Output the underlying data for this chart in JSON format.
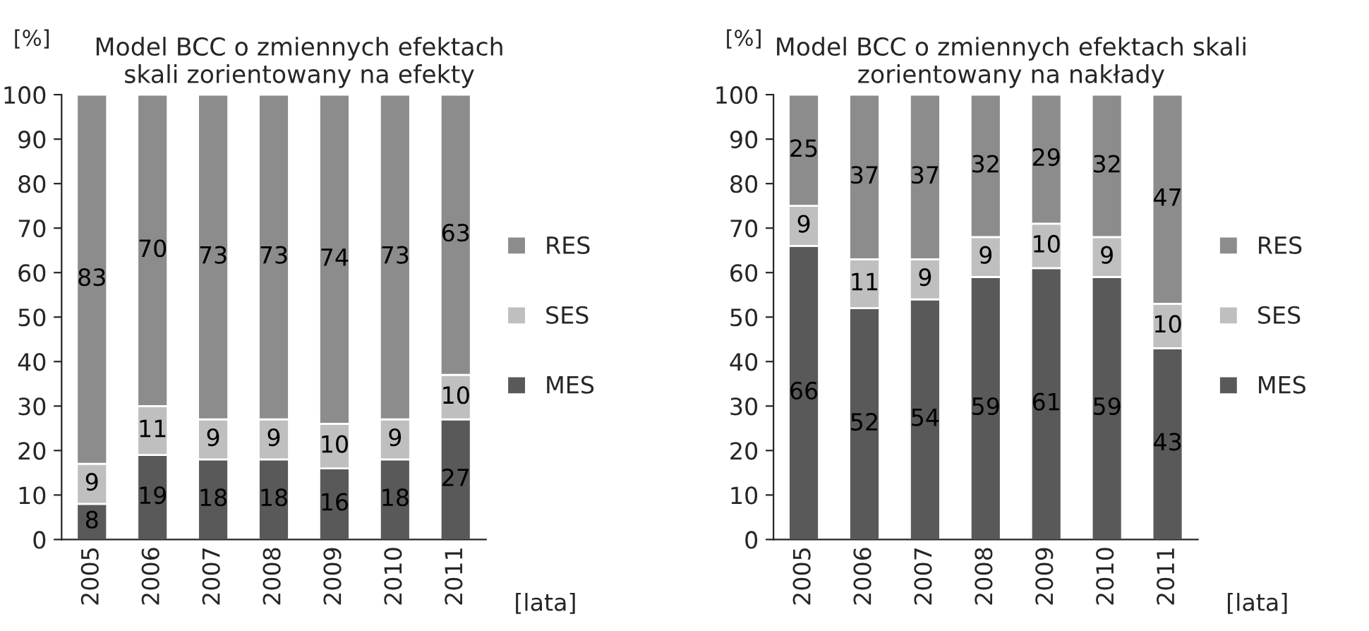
{
  "chart_data": [
    {
      "type": "bar",
      "title": "Model BCC o zmiennych efektach\nskali zorientowany na efekty",
      "ylabel": "[%]",
      "xlabel": "[lata]",
      "categories": [
        "2005",
        "2006",
        "2007",
        "2008",
        "2009",
        "2010",
        "2011"
      ],
      "stacked": true,
      "data_labels": true,
      "legend": "right",
      "grid": false,
      "ylim": [
        0,
        100
      ],
      "yticks": [
        0,
        10,
        20,
        30,
        40,
        50,
        60,
        70,
        80,
        90,
        100
      ],
      "series": [
        {
          "name": "MES",
          "color": "#595959",
          "values": [
            8,
            19,
            18,
            18,
            16,
            18,
            27
          ]
        },
        {
          "name": "SES",
          "color": "#bfbfbf",
          "values": [
            9,
            11,
            9,
            9,
            10,
            9,
            10
          ]
        },
        {
          "name": "RES",
          "color": "#8c8c8c",
          "values": [
            83,
            70,
            73,
            73,
            74,
            73,
            63
          ]
        }
      ]
    },
    {
      "type": "bar",
      "title": "Model BCC o zmiennych efektach skali\nzorientowany na nakłady",
      "ylabel": "[%]",
      "xlabel": "[lata]",
      "categories": [
        "2005",
        "2006",
        "2007",
        "2008",
        "2009",
        "2010",
        "2011"
      ],
      "stacked": true,
      "data_labels": true,
      "legend": "right",
      "grid": false,
      "ylim": [
        0,
        100
      ],
      "yticks": [
        0,
        10,
        20,
        30,
        40,
        50,
        60,
        70,
        80,
        90,
        100
      ],
      "series": [
        {
          "name": "MES",
          "color": "#595959",
          "values": [
            66,
            52,
            54,
            59,
            61,
            59,
            43
          ]
        },
        {
          "name": "SES",
          "color": "#bfbfbf",
          "values": [
            9,
            11,
            9,
            9,
            10,
            9,
            10
          ]
        },
        {
          "name": "RES",
          "color": "#8c8c8c",
          "values": [
            25,
            37,
            37,
            32,
            29,
            32,
            47
          ]
        }
      ]
    }
  ]
}
